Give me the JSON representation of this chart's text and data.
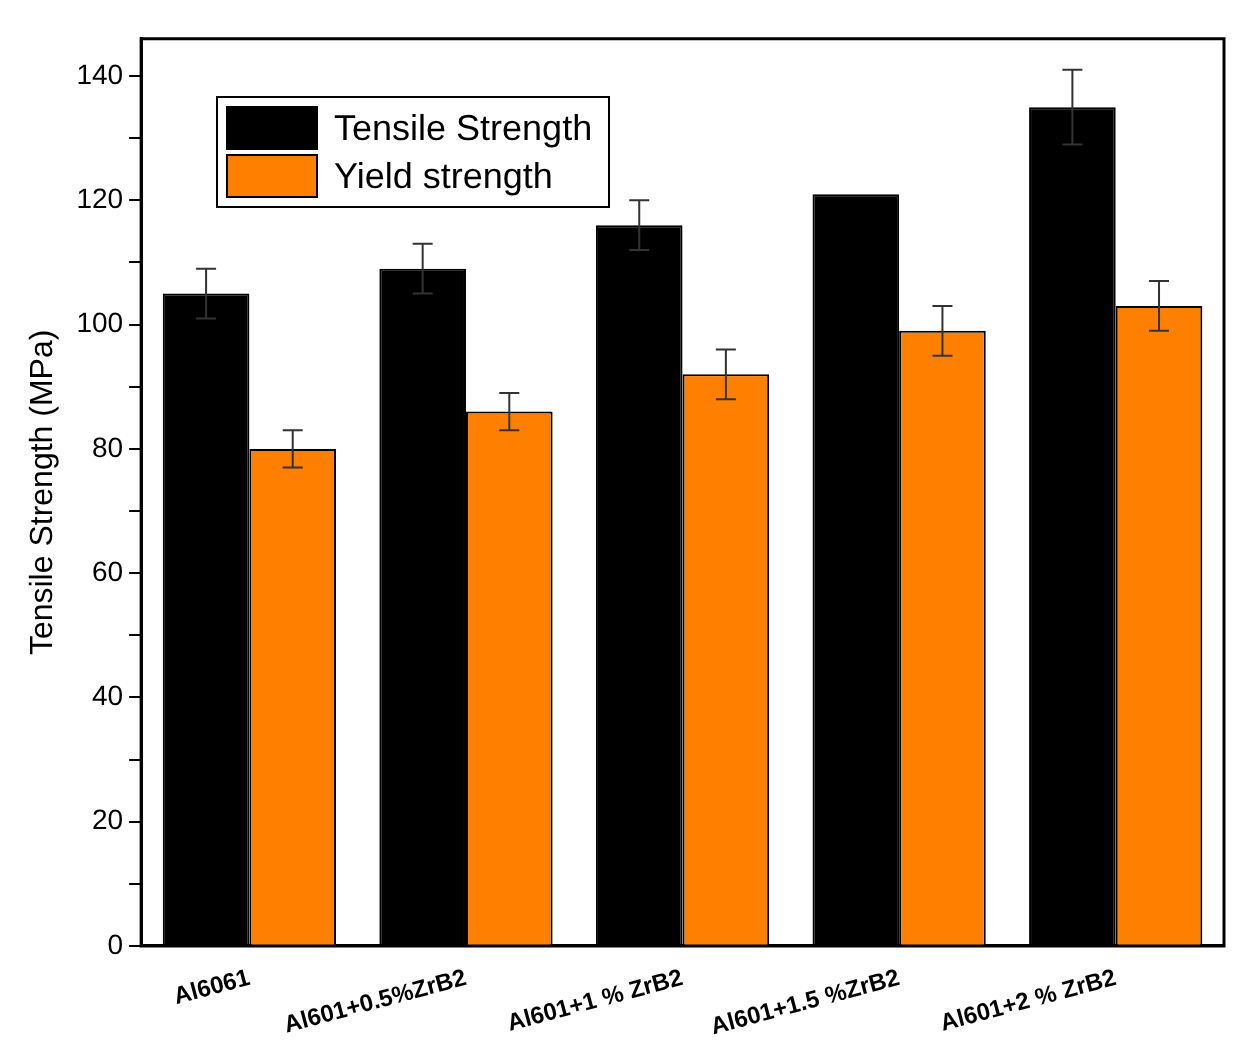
{
  "chart_data": {
    "type": "bar",
    "ylabel": "Tensile Strength (MPa)",
    "categories": [
      "Al6061",
      "Al601+0.5%ZrB2",
      "Al601+1 % ZrB2",
      "Al601+1.5 %ZrB2",
      "Al601+2 % ZrB2"
    ],
    "series": [
      {
        "name": "Tensile Strength",
        "color": "#000000",
        "values": [
          105,
          109,
          116,
          121,
          135
        ],
        "errors": [
          4,
          4,
          4,
          null,
          6
        ]
      },
      {
        "name": "Yield strength",
        "color": "#ff8000",
        "values": [
          80,
          86,
          92,
          99,
          103
        ],
        "errors": [
          3,
          3,
          4,
          4,
          4
        ]
      }
    ],
    "ylim": [
      0,
      146
    ],
    "yticks": [
      0,
      {
        "value": 10,
        "label": null
      },
      20,
      {
        "value": 30,
        "label": null
      },
      40,
      {
        "value": 50,
        "label": null
      },
      60,
      {
        "value": 70,
        "label": null
      },
      80,
      {
        "value": 90,
        "label": null
      },
      100,
      {
        "value": 110,
        "label": null
      },
      120,
      {
        "value": 130,
        "label": null
      },
      140
    ],
    "grid": false,
    "legend": "top left"
  }
}
